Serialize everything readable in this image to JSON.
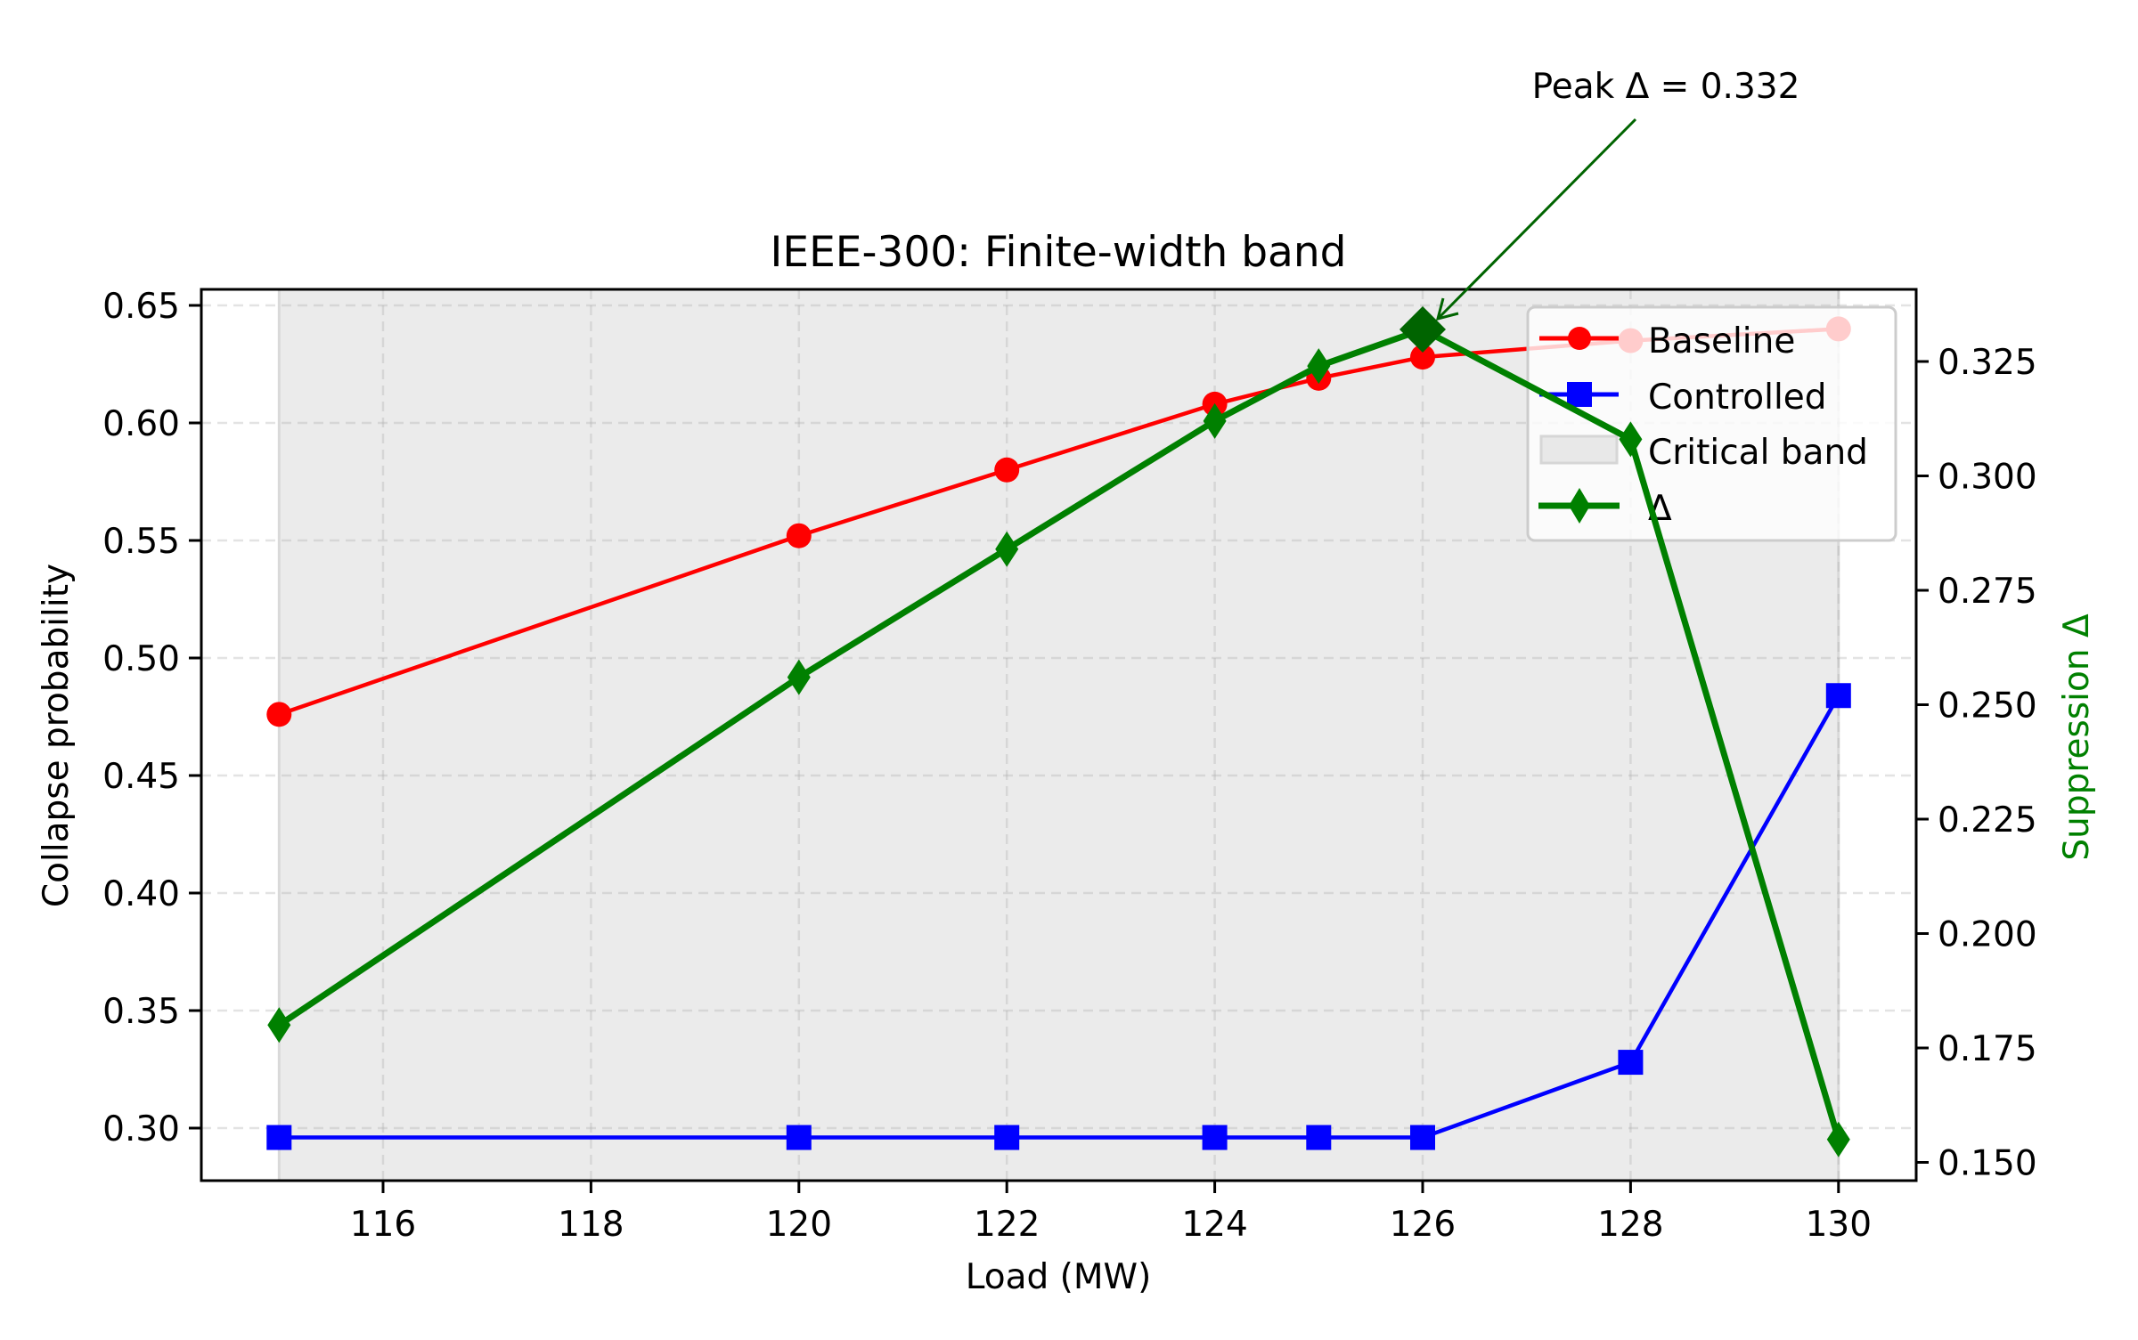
{
  "chart_data": {
    "type": "line",
    "title": "IEEE-300: Finite-width band",
    "xlabel": "Load (MW)",
    "ylabel": "Collapse probability",
    "ylabel_right": "Suppression Δ",
    "x": [
      115,
      120,
      122,
      124,
      125,
      126,
      128,
      130
    ],
    "xticks": [
      116,
      118,
      120,
      122,
      124,
      126,
      128,
      130
    ],
    "xlim": [
      114.2,
      130.75
    ],
    "ylim": [
      0.278,
      0.657
    ],
    "yticks": [
      0.3,
      0.35,
      0.4,
      0.45,
      0.5,
      0.55,
      0.6,
      0.65
    ],
    "yticks_labels": [
      "0.30",
      "0.35",
      "0.40",
      "0.45",
      "0.50",
      "0.55",
      "0.60",
      "0.65"
    ],
    "ylim_right": [
      0.147,
      0.34
    ],
    "yticks_right": [
      0.15,
      0.175,
      0.2,
      0.225,
      0.25,
      0.275,
      0.3,
      0.325
    ],
    "yticks_right_labels": [
      "0.150",
      "0.175",
      "0.200",
      "0.225",
      "0.250",
      "0.275",
      "0.300",
      "0.325"
    ],
    "grid": true,
    "legend_position": "upper right",
    "series": [
      {
        "name": "Baseline",
        "axis": "left",
        "color": "#ff0000",
        "marker": "circle",
        "values": [
          0.476,
          0.552,
          0.58,
          0.608,
          0.619,
          0.628,
          0.635,
          0.64
        ]
      },
      {
        "name": "Controlled",
        "axis": "left",
        "color": "#0000ff",
        "marker": "square",
        "values": [
          0.296,
          0.296,
          0.296,
          0.296,
          0.296,
          0.296,
          0.328,
          0.484
        ]
      },
      {
        "name": "Δ",
        "axis": "right",
        "color": "#008000",
        "marker": "diamond",
        "values": [
          0.18,
          0.256,
          0.284,
          0.312,
          0.324,
          0.332,
          0.308,
          0.155
        ]
      }
    ],
    "shaded_band": {
      "name": "Critical band",
      "x_start": 115,
      "x_end": 130,
      "color": "#ebebeb"
    },
    "annotations": [
      {
        "text": "Peak Δ = 0.332",
        "x": 126,
        "y": 0.332,
        "axis": "right",
        "color": "#006400"
      }
    ],
    "legend": [
      "Baseline",
      "Controlled",
      "Critical band",
      "Δ"
    ]
  }
}
